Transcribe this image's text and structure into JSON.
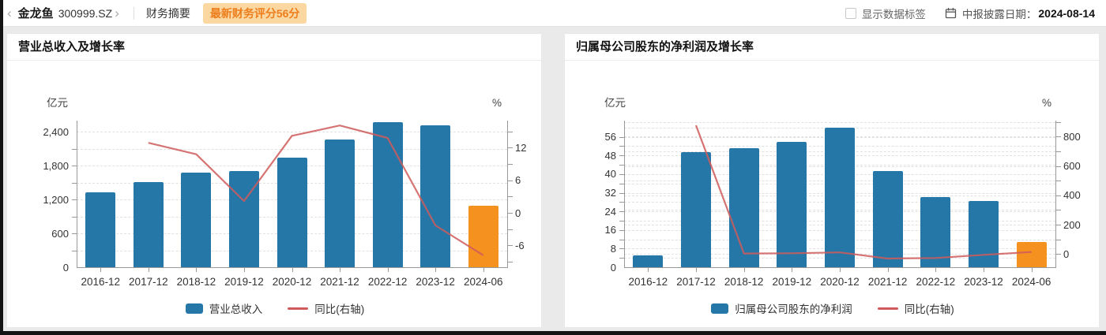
{
  "header": {
    "back_icon": "‹",
    "stock_name": "金龙鱼",
    "stock_code": "300999.SZ",
    "forward_icon": "›",
    "tab": "财务摘要",
    "score_badge": "最新财务评分56分",
    "show_labels_checkbox_label": "显示数据标签",
    "checkbox_checked": false,
    "calendar_icon": "calendar",
    "report_date_label": "中报披露日期：",
    "report_date": "2024-08-14"
  },
  "colors": {
    "bar_blue": "#2577A8",
    "bar_orange": "#F5911F",
    "line_red": "#CF5A5A",
    "axis_gray": "#999999",
    "grid_gray": "#E1E1E1",
    "badge_bg": "#FBD7A2",
    "badge_text": "#EE7E1C"
  },
  "charts": [
    {
      "title": "营业总收入及增长率",
      "unit_left": "亿元",
      "unit_right": "%",
      "chart_data": {
        "type": "bar+line",
        "categories": [
          "2016-12",
          "2017-12",
          "2018-12",
          "2019-12",
          "2020-12",
          "2021-12",
          "2022-12",
          "2023-12",
          "2024-06"
        ],
        "series": [
          {
            "name": "营业总收入",
            "type": "bar",
            "axis": "left",
            "unit": "亿元",
            "values": [
              1334.9,
              1507.7,
              1670.7,
              1707.4,
              1949.2,
              2262.3,
              2574.9,
              2515.2,
              1094.8
            ]
          },
          {
            "name": "同比(右轴)",
            "type": "line",
            "axis": "right",
            "unit": "%",
            "values": [
              null,
              12.9,
              10.8,
              2.2,
              14.2,
              16.1,
              13.8,
              -2.3,
              -7.8
            ]
          }
        ],
        "left_axis": {
          "min": 0,
          "max": 2600,
          "minor_step": 300,
          "labeled_ticks": [
            [
              0,
              "0"
            ],
            [
              600,
              "600"
            ],
            [
              1200,
              "1,200"
            ],
            [
              1800,
              "1,800"
            ],
            [
              2400,
              "2,400"
            ]
          ]
        },
        "right_axis": {
          "min": -10,
          "max": 17,
          "minor_step": 3,
          "draw_grid": false,
          "labeled_ticks": [
            [
              -6,
              "-6"
            ],
            [
              0,
              "0"
            ],
            [
              6,
              "6"
            ],
            [
              12,
              "12"
            ]
          ]
        },
        "last_bar_highlighted": true,
        "legend": [
          {
            "label": "营业总收入",
            "swatch": "bar"
          },
          {
            "label": "同比(右轴)",
            "swatch": "line"
          }
        ]
      }
    },
    {
      "title": "归属母公司股东的净利润及增长率",
      "unit_left": "亿元",
      "unit_right": "%",
      "chart_data": {
        "type": "bar+line",
        "categories": [
          "2016-12",
          "2017-12",
          "2018-12",
          "2019-12",
          "2020-12",
          "2021-12",
          "2022-12",
          "2023-12",
          "2024-06"
        ],
        "series": [
          {
            "name": "归属母公司股东的净利润",
            "type": "bar",
            "axis": "left",
            "unit": "亿元",
            "values": [
              5.1,
              49.6,
              51.3,
              54.0,
              60.0,
              41.3,
              30.1,
              28.5,
              11.0
            ]
          },
          {
            "name": "同比(右轴)",
            "type": "line",
            "axis": "right",
            "unit": "%",
            "values": [
              null,
              877.9,
              3.4,
              5.3,
              11.2,
              -31.1,
              -27.1,
              -5.4,
              13.6
            ]
          }
        ],
        "left_axis": {
          "min": 0,
          "max": 63,
          "minor_step": 4,
          "labeled_ticks": [
            [
              0,
              "0"
            ],
            [
              8,
              "8"
            ],
            [
              16,
              "16"
            ],
            [
              24,
              "24"
            ],
            [
              32,
              "32"
            ],
            [
              40,
              "40"
            ],
            [
              48,
              "48"
            ],
            [
              56,
              "56"
            ]
          ]
        },
        "right_axis": {
          "min": -90,
          "max": 910,
          "minor_step": 100,
          "draw_grid": true,
          "labeled_ticks": [
            [
              0,
              "0"
            ],
            [
              200,
              "200"
            ],
            [
              400,
              "400"
            ],
            [
              600,
              "600"
            ],
            [
              800,
              "800"
            ]
          ]
        },
        "last_bar_highlighted": true,
        "legend": [
          {
            "label": "归属母公司股东的净利润",
            "swatch": "bar"
          },
          {
            "label": "同比(右轴)",
            "swatch": "line"
          }
        ]
      }
    }
  ]
}
